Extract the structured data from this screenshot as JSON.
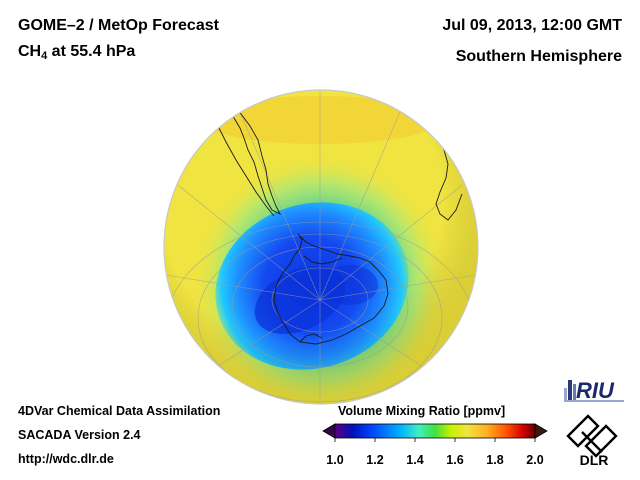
{
  "header": {
    "title": "GOME–2 / MetOp Forecast",
    "species": "CH",
    "species_sub": "4",
    "level": " at 55.4 hPa",
    "datetime": "Jul 09, 2013, 12:00 GMT",
    "region": "Southern Hemisphere"
  },
  "footer": {
    "line1": "4DVar Chemical Data Assimilation",
    "line2": "SACADA Version 2.4",
    "line3": "http://wdc.dlr.de"
  },
  "colorbar": {
    "title": "Volume Mixing Ratio [ppmv]",
    "min": 1.0,
    "max": 2.0,
    "ticks": [
      "1.0",
      "1.2",
      "1.4",
      "1.6",
      "1.8",
      "2.0"
    ],
    "colors": [
      "#5a007a",
      "#0010c0",
      "#0050ff",
      "#00b4ff",
      "#40f0c0",
      "#40e040",
      "#c8f000",
      "#f0e440",
      "#ffb020",
      "#ff5000",
      "#d00000",
      "#6a0000"
    ]
  },
  "map": {
    "background_level_color": "#f0e440",
    "ring_color": "#5cd08c",
    "polar_low_color": "#0a36e0"
  },
  "logos": {
    "riu": "RIU",
    "dlr": "DLR"
  }
}
